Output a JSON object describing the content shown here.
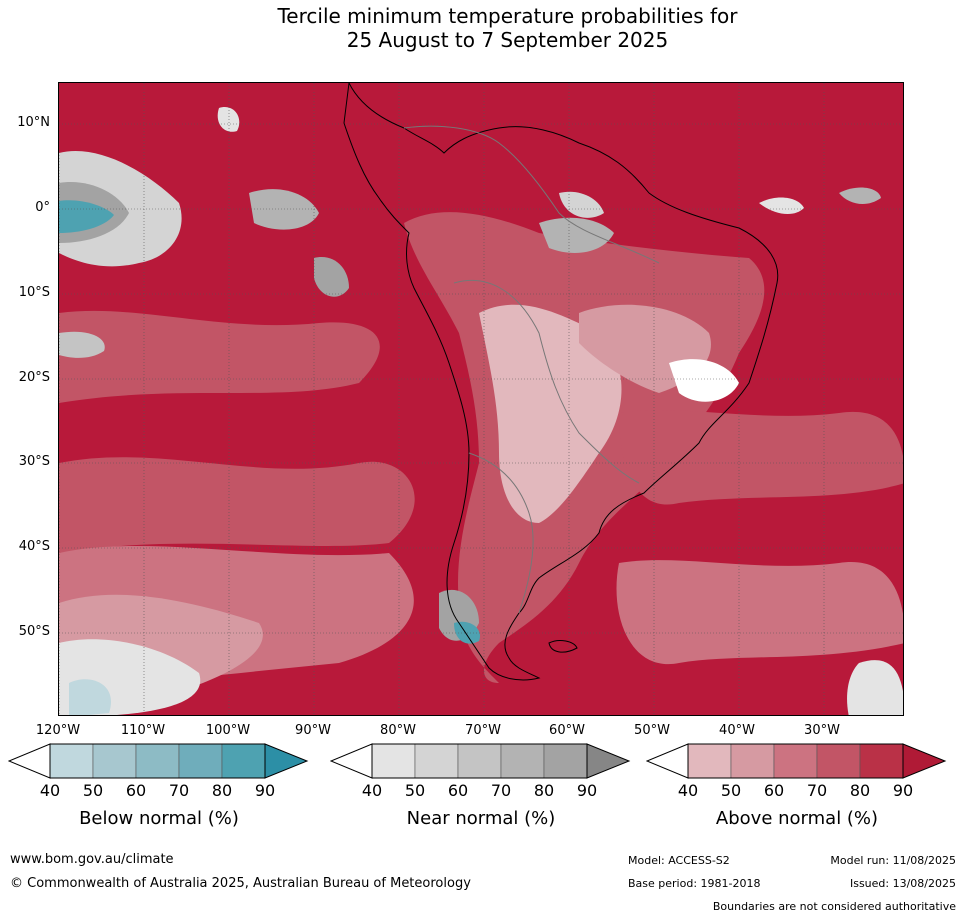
{
  "title": {
    "line1": "Tercile minimum temperature probabilities for",
    "line2": "25 August to 7 September 2025"
  },
  "map": {
    "lat_labels": [
      "10°N",
      "0°",
      "10°S",
      "20°S",
      "30°S",
      "40°S",
      "50°S"
    ],
    "lon_labels": [
      "120°W",
      "110°W",
      "100°W",
      "90°W",
      "80°W",
      "70°W",
      "60°W",
      "50°W",
      "40°W",
      "30°W"
    ],
    "colors": {
      "above_dominant": "#b8193a",
      "below_peak": "#2c8fa6",
      "near_peak": "#8a8a8a"
    }
  },
  "colorbars": [
    {
      "label": "Below normal (%)",
      "ticks": [
        "40",
        "50",
        "60",
        "70",
        "80",
        "90"
      ],
      "colors": [
        "#c0d8de",
        "#a7c7cf",
        "#8dbbc5",
        "#6fadbb",
        "#4ea2b1",
        "#2c8fa6"
      ]
    },
    {
      "label": "Near normal (%)",
      "ticks": [
        "40",
        "50",
        "60",
        "70",
        "80",
        "90"
      ],
      "colors": [
        "#e4e4e4",
        "#d4d4d4",
        "#c4c4c4",
        "#b3b3b3",
        "#a3a3a3",
        "#868686"
      ]
    },
    {
      "label": "Above normal (%)",
      "ticks": [
        "40",
        "50",
        "60",
        "70",
        "80",
        "90"
      ],
      "colors": [
        "#e2b8bd",
        "#d69aa2",
        "#cc7381",
        "#c25566",
        "#ba3147",
        "#b01a36"
      ]
    }
  ],
  "footer": {
    "website": "www.bom.gov.au/climate",
    "copyright": "© Commonwealth of Australia 2025, Australian Bureau of Meteorology",
    "model": "Model: ACCESS-S2",
    "model_run": "Model run: 11/08/2025",
    "base_period": "Base period: 1981-2018",
    "issued": "Issued: 13/08/2025",
    "disclaimer": "Boundaries are not considered authoritative"
  }
}
